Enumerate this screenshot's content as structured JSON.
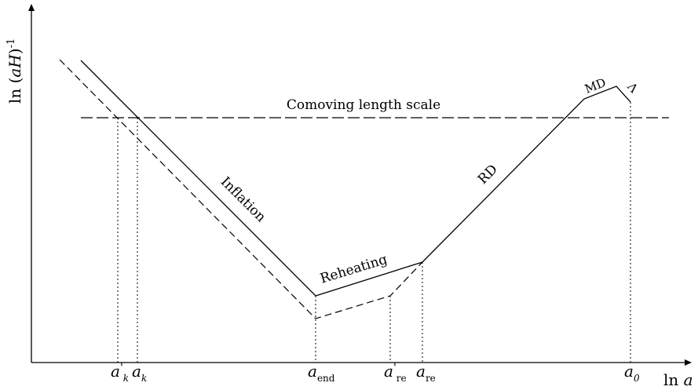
{
  "axes": {
    "x_label": {
      "main": "ln ",
      "var": "a"
    },
    "y_label": {
      "main": "ln (",
      "var": "aH",
      "close": ")",
      "sup": "-1"
    }
  },
  "labels": {
    "comoving": "Comoving length scale",
    "inflation": "Inflation",
    "reheating": "Reheating",
    "rd": "RD",
    "md": "MD",
    "lambda": "Λ"
  },
  "ticks": [
    {
      "id": "a-prime-k",
      "base": "a",
      "prime": "'",
      "sub": "k"
    },
    {
      "id": "a-k",
      "base": "a",
      "prime": "",
      "sub": "k"
    },
    {
      "id": "a-end",
      "base": "a",
      "prime": "",
      "sub": "end"
    },
    {
      "id": "a-prime-re",
      "base": "a",
      "prime": "'",
      "sub": "re"
    },
    {
      "id": "a-re",
      "base": "a",
      "prime": "",
      "sub": "re"
    },
    {
      "id": "a-0",
      "base": "a",
      "prime": "",
      "sub": "0"
    }
  ],
  "colors": {
    "ink": "#000000",
    "background": "#ffffff"
  }
}
